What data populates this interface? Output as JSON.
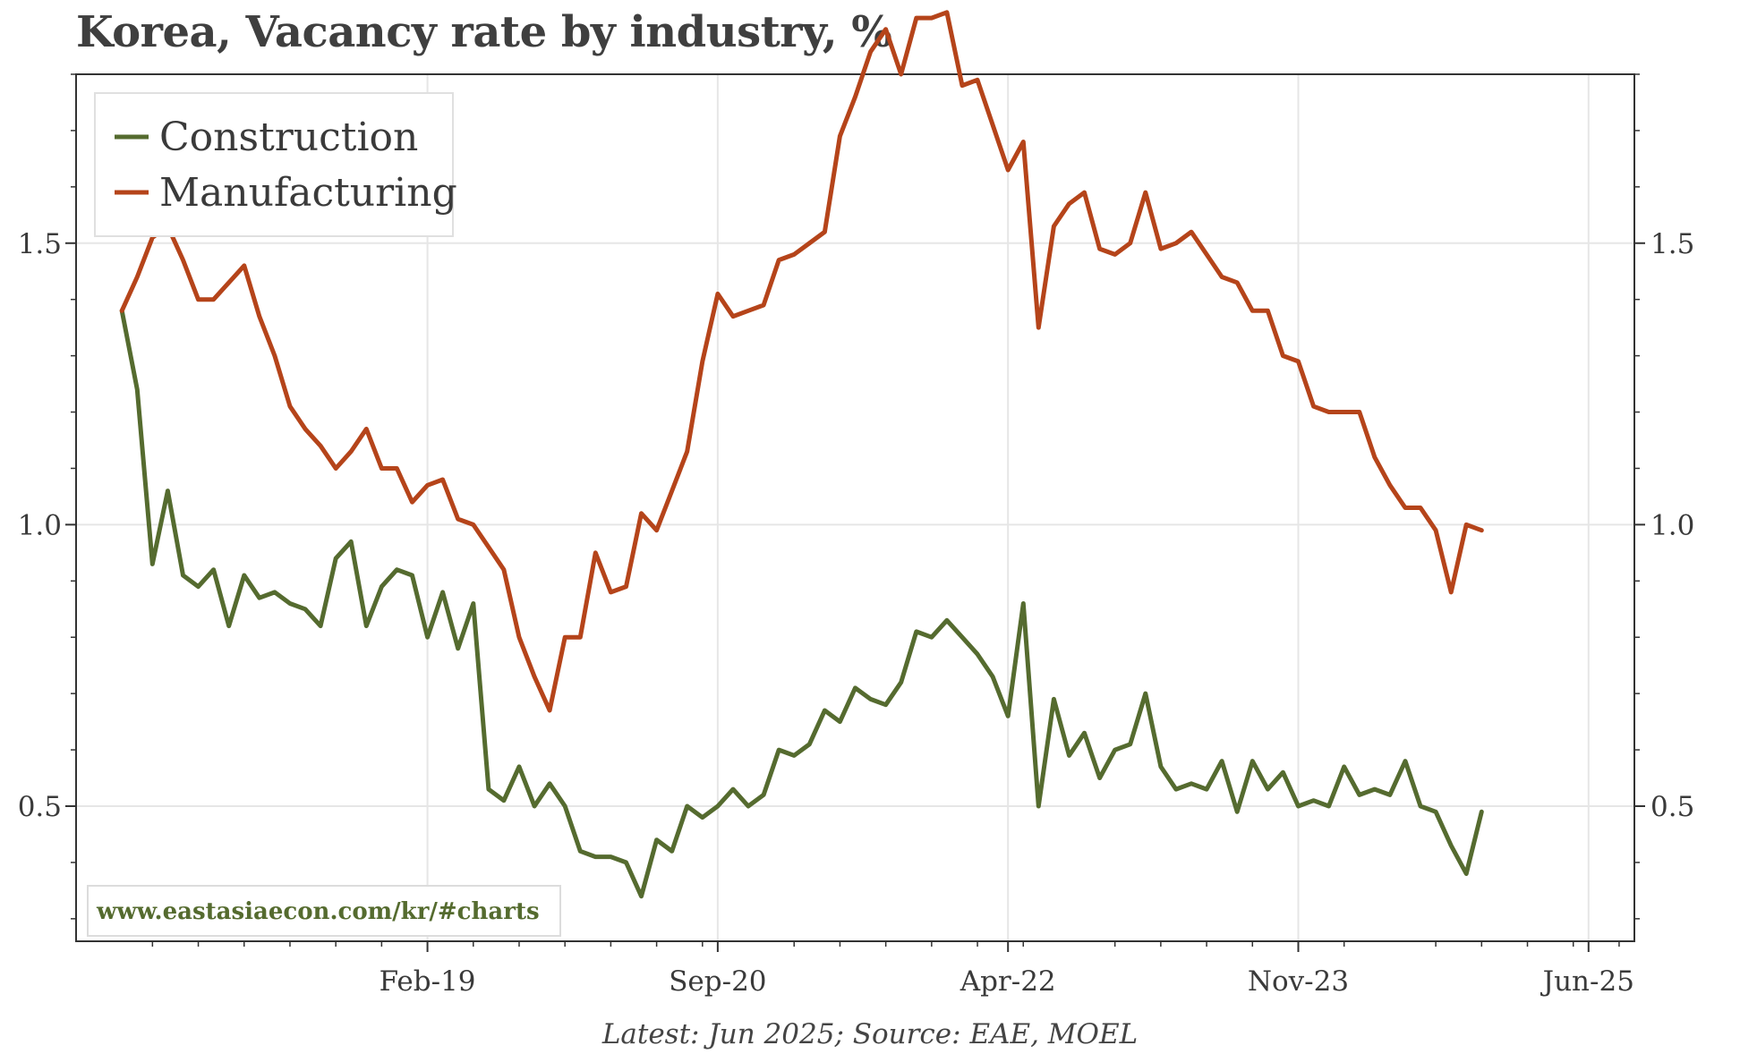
{
  "title": "Korea, Vacancy rate by industry, %",
  "source_note": "Latest: Jun 2025; Source: EAE, MOEL",
  "watermark": "www.eastasiaecon.com/kr/#charts",
  "colors": {
    "construction": "#556b2f",
    "manufacturing": "#b5441a",
    "grid": "#e6e6e6",
    "axis": "#333333",
    "watermark": "#556b2f"
  },
  "chart_data": {
    "type": "line",
    "title": "Korea, Vacancy rate by industry, %",
    "x_tick_labels": [
      "Feb-19",
      "Sep-20",
      "Apr-22",
      "Nov-23",
      "Jun-25"
    ],
    "y_ticks": [
      0.5,
      1.0,
      1.5
    ],
    "y_tick_labels": [
      "0.5",
      "1.0",
      "1.5"
    ],
    "ylim": [
      0.26,
      1.8
    ],
    "xlim": [
      "Mar-17",
      "Sep-25"
    ],
    "grid": true,
    "legend_position": "top-left",
    "secondary_y_axis_mirrors_primary": true,
    "series": [
      {
        "name": "Construction",
        "color": "#556b2f",
        "points": [
          [
            "Jun-17",
            1.38
          ],
          [
            "Jul-17",
            1.24
          ],
          [
            "Aug-17",
            0.93
          ],
          [
            "Sep-17",
            1.06
          ],
          [
            "Oct-17",
            0.91
          ],
          [
            "Nov-17",
            0.89
          ],
          [
            "Dec-17",
            0.92
          ],
          [
            "Jan-18",
            0.82
          ],
          [
            "Feb-18",
            0.91
          ],
          [
            "Mar-18",
            0.87
          ],
          [
            "Apr-18",
            0.88
          ],
          [
            "May-18",
            0.86
          ],
          [
            "Jun-18",
            0.85
          ],
          [
            "Jul-18",
            0.82
          ],
          [
            "Aug-18",
            0.94
          ],
          [
            "Sep-18",
            0.97
          ],
          [
            "Oct-18",
            0.82
          ],
          [
            "Nov-18",
            0.89
          ],
          [
            "Dec-18",
            0.92
          ],
          [
            "Jan-19",
            0.91
          ],
          [
            "Feb-19",
            0.8
          ],
          [
            "Mar-19",
            0.88
          ],
          [
            "Apr-19",
            0.78
          ],
          [
            "May-19",
            0.86
          ],
          [
            "Jun-19",
            0.53
          ],
          [
            "Jul-19",
            0.51
          ],
          [
            "Aug-19",
            0.57
          ],
          [
            "Sep-19",
            0.5
          ],
          [
            "Oct-19",
            0.54
          ],
          [
            "Nov-19",
            0.5
          ],
          [
            "Dec-19",
            0.42
          ],
          [
            "Jan-20",
            0.41
          ],
          [
            "Feb-20",
            0.41
          ],
          [
            "Mar-20",
            0.4
          ],
          [
            "Apr-20",
            0.34
          ],
          [
            "May-20",
            0.44
          ],
          [
            "Jun-20",
            0.42
          ],
          [
            "Jul-20",
            0.5
          ],
          [
            "Aug-20",
            0.48
          ],
          [
            "Sep-20",
            0.5
          ],
          [
            "Oct-20",
            0.53
          ],
          [
            "Nov-20",
            0.5
          ],
          [
            "Dec-20",
            0.52
          ],
          [
            "Jan-21",
            0.6
          ],
          [
            "Feb-21",
            0.59
          ],
          [
            "Mar-21",
            0.61
          ],
          [
            "Apr-21",
            0.67
          ],
          [
            "May-21",
            0.65
          ],
          [
            "Jun-21",
            0.71
          ],
          [
            "Jul-21",
            0.69
          ],
          [
            "Aug-21",
            0.68
          ],
          [
            "Sep-21",
            0.72
          ],
          [
            "Oct-21",
            0.81
          ],
          [
            "Nov-21",
            0.8
          ],
          [
            "Dec-21",
            0.83
          ],
          [
            "Jan-22",
            0.8
          ],
          [
            "Feb-22",
            0.77
          ],
          [
            "Mar-22",
            0.73
          ],
          [
            "Apr-22",
            0.66
          ],
          [
            "May-22",
            0.86
          ],
          [
            "Jun-22",
            0.5
          ],
          [
            "Jul-22",
            0.69
          ],
          [
            "Aug-22",
            0.59
          ],
          [
            "Sep-22",
            0.63
          ],
          [
            "Oct-22",
            0.55
          ],
          [
            "Nov-22",
            0.6
          ],
          [
            "Dec-22",
            0.61
          ],
          [
            "Jan-23",
            0.7
          ],
          [
            "Feb-23",
            0.57
          ],
          [
            "Mar-23",
            0.53
          ],
          [
            "Apr-23",
            0.54
          ],
          [
            "May-23",
            0.53
          ],
          [
            "Jun-23",
            0.58
          ],
          [
            "Jul-23",
            0.49
          ],
          [
            "Aug-23",
            0.58
          ],
          [
            "Sep-23",
            0.53
          ],
          [
            "Oct-23",
            0.56
          ],
          [
            "Nov-23",
            0.5
          ],
          [
            "Dec-23",
            0.51
          ],
          [
            "Jan-24",
            0.5
          ],
          [
            "Feb-24",
            0.57
          ],
          [
            "Mar-24",
            0.52
          ],
          [
            "Apr-24",
            0.53
          ],
          [
            "May-24",
            0.52
          ],
          [
            "Jun-24",
            0.58
          ],
          [
            "Jul-24",
            0.5
          ],
          [
            "Aug-24",
            0.49
          ],
          [
            "Sep-24",
            0.43
          ],
          [
            "Oct-24",
            0.38
          ],
          [
            "Nov-24",
            0.49
          ]
        ]
      },
      {
        "name": "Manufacturing",
        "color": "#b5441a",
        "points": [
          [
            "Jun-17",
            1.38
          ],
          [
            "Jul-17",
            1.44
          ],
          [
            "Aug-17",
            1.51
          ],
          [
            "Sep-17",
            1.53
          ],
          [
            "Oct-17",
            1.47
          ],
          [
            "Nov-17",
            1.4
          ],
          [
            "Dec-17",
            1.4
          ],
          [
            "Jan-18",
            1.43
          ],
          [
            "Feb-18",
            1.46
          ],
          [
            "Mar-18",
            1.37
          ],
          [
            "Apr-18",
            1.3
          ],
          [
            "May-18",
            1.21
          ],
          [
            "Jun-18",
            1.17
          ],
          [
            "Jul-18",
            1.14
          ],
          [
            "Aug-18",
            1.1
          ],
          [
            "Sep-18",
            1.13
          ],
          [
            "Oct-18",
            1.17
          ],
          [
            "Nov-18",
            1.1
          ],
          [
            "Dec-18",
            1.1
          ],
          [
            "Jan-19",
            1.04
          ],
          [
            "Feb-19",
            1.07
          ],
          [
            "Mar-19",
            1.08
          ],
          [
            "Apr-19",
            1.01
          ],
          [
            "May-19",
            1.0
          ],
          [
            "Jun-19",
            0.96
          ],
          [
            "Jul-19",
            0.92
          ],
          [
            "Aug-19",
            0.8
          ],
          [
            "Sep-19",
            0.73
          ],
          [
            "Oct-19",
            0.67
          ],
          [
            "Nov-19",
            0.8
          ],
          [
            "Dec-19",
            0.8
          ],
          [
            "Jan-20",
            0.95
          ],
          [
            "Feb-20",
            0.88
          ],
          [
            "Mar-20",
            0.89
          ],
          [
            "Apr-20",
            1.02
          ],
          [
            "May-20",
            0.99
          ],
          [
            "Jun-20",
            1.06
          ],
          [
            "Jul-20",
            1.13
          ],
          [
            "Aug-20",
            1.29
          ],
          [
            "Sep-20",
            1.41
          ],
          [
            "Oct-20",
            1.37
          ],
          [
            "Nov-20",
            1.38
          ],
          [
            "Dec-20",
            1.39
          ],
          [
            "Jan-21",
            1.47
          ],
          [
            "Feb-21",
            1.48
          ],
          [
            "Mar-21",
            1.5
          ],
          [
            "Apr-21",
            1.52
          ],
          [
            "May-21",
            1.69
          ],
          [
            "Jun-21",
            1.76
          ],
          [
            "Jul-21",
            1.84
          ],
          [
            "Aug-21",
            1.88
          ],
          [
            "Sep-21",
            1.8
          ],
          [
            "Oct-21",
            1.9
          ],
          [
            "Nov-21",
            1.9
          ],
          [
            "Dec-21",
            1.91
          ],
          [
            "Jan-22",
            1.78
          ],
          [
            "Feb-22",
            1.79
          ],
          [
            "Mar-22",
            1.71
          ],
          [
            "Apr-22",
            1.63
          ],
          [
            "May-22",
            1.68
          ],
          [
            "Jun-22",
            1.35
          ],
          [
            "Jul-22",
            1.53
          ],
          [
            "Aug-22",
            1.57
          ],
          [
            "Sep-22",
            1.59
          ],
          [
            "Oct-22",
            1.49
          ],
          [
            "Nov-22",
            1.48
          ],
          [
            "Dec-22",
            1.5
          ],
          [
            "Jan-23",
            1.59
          ],
          [
            "Feb-23",
            1.49
          ],
          [
            "Mar-23",
            1.5
          ],
          [
            "Apr-23",
            1.52
          ],
          [
            "May-23",
            1.48
          ],
          [
            "Jun-23",
            1.44
          ],
          [
            "Jul-23",
            1.43
          ],
          [
            "Aug-23",
            1.38
          ],
          [
            "Sep-23",
            1.38
          ],
          [
            "Oct-23",
            1.3
          ],
          [
            "Nov-23",
            1.29
          ],
          [
            "Dec-23",
            1.21
          ],
          [
            "Jan-24",
            1.2
          ],
          [
            "Feb-24",
            1.2
          ],
          [
            "Mar-24",
            1.2
          ],
          [
            "Apr-24",
            1.12
          ],
          [
            "May-24",
            1.07
          ],
          [
            "Jun-24",
            1.03
          ],
          [
            "Jul-24",
            1.03
          ],
          [
            "Aug-24",
            0.99
          ],
          [
            "Sep-24",
            0.88
          ],
          [
            "Oct-24",
            1.0
          ],
          [
            "Nov-24",
            0.99
          ]
        ]
      }
    ]
  }
}
